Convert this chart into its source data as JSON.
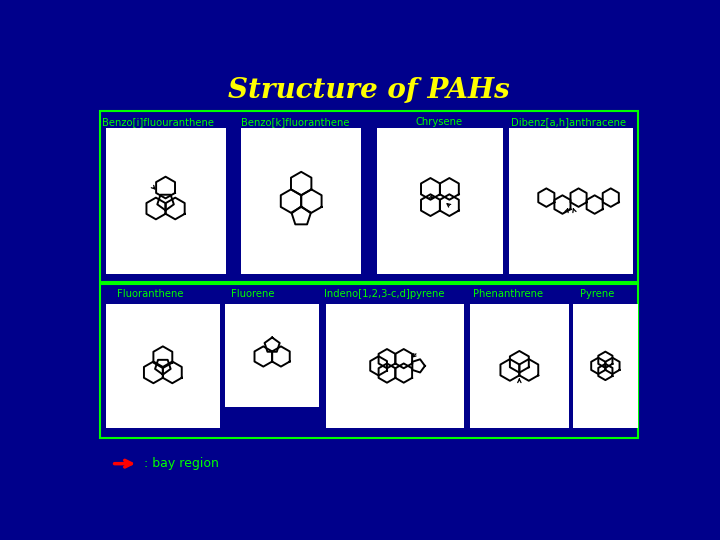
{
  "title": "Structure of PAHs",
  "title_color": "#FFFF00",
  "title_fontsize": 20,
  "bg_color": "#00008B",
  "label_color": "#00FF00",
  "box_edge_color": "#00FF00",
  "bay_arrow_color": "#FF0000",
  "bay_text": ": bay region",
  "bay_text_color": "#00FF00",
  "row1_labels": [
    "Benzo[i]fluouranthene",
    "Benzo[k]fluoranthene",
    "Chrysene",
    "Dibenz[a,h]anthracene"
  ],
  "row2_labels": [
    "Fluoranthene",
    "Fluorene",
    "Indeno[1,2,3-c,d]pyrene",
    "Phenanthrene",
    "Pyrene"
  ]
}
